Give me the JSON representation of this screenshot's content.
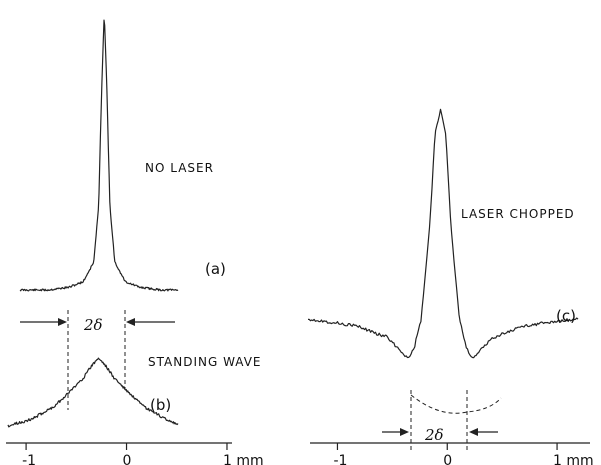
{
  "chart_data": [
    {
      "type": "line",
      "panel_label": "(a)",
      "annotation": "NO LASER",
      "xlabel": "mm",
      "xlim": [
        -1.2,
        1.05
      ],
      "xticks": [
        -1,
        0,
        1
      ],
      "xtick_labels": [
        "-1",
        "0",
        "1 mm"
      ],
      "series": [
        {
          "x": [
            -1.2,
            -0.8,
            -0.5,
            -0.3,
            -0.15,
            -0.08,
            -0.04,
            0.0,
            0.04,
            0.08,
            0.15,
            0.3,
            0.5,
            0.8,
            1.05
          ],
          "y": [
            0.0,
            0.0,
            0.01,
            0.03,
            0.1,
            0.3,
            0.7,
            1.0,
            0.7,
            0.3,
            0.1,
            0.03,
            0.01,
            0.0,
            0.0
          ]
        }
      ]
    },
    {
      "type": "line",
      "panel_label": "(b)",
      "annotation": "STANDING WAVE",
      "marker_label": "2δ",
      "xlabel": "mm",
      "xlim": [
        -1.2,
        1.05
      ],
      "xticks": [
        -1,
        0,
        1
      ],
      "xtick_labels": [
        "-1",
        "0",
        "1 mm"
      ],
      "series": [
        {
          "x": [
            -1.2,
            -0.9,
            -0.6,
            -0.4,
            -0.2,
            -0.1,
            0.0,
            0.1,
            0.2,
            0.4,
            0.6,
            0.9,
            1.05
          ],
          "y": [
            0.03,
            0.12,
            0.3,
            0.5,
            0.72,
            0.88,
            1.0,
            0.88,
            0.72,
            0.5,
            0.3,
            0.12,
            0.05
          ]
        }
      ]
    },
    {
      "type": "line",
      "panel_label": "(c)",
      "annotation": "LASER CHOPPED",
      "marker_label": "2δ",
      "xlabel": "mm",
      "xlim": [
        -1.25,
        1.3
      ],
      "xticks": [
        -1,
        0,
        1
      ],
      "xtick_labels": [
        "-1",
        "0",
        "1 mm"
      ],
      "series": [
        {
          "x": [
            -1.25,
            -0.8,
            -0.5,
            -0.35,
            -0.3,
            -0.25,
            -0.18,
            -0.1,
            -0.05,
            0.0,
            0.05,
            0.1,
            0.18,
            0.25,
            0.3,
            0.35,
            0.5,
            0.8,
            1.3
          ],
          "y": [
            0.1,
            0.07,
            0.02,
            -0.05,
            -0.07,
            -0.03,
            0.1,
            0.5,
            0.9,
            1.0,
            0.9,
            0.5,
            0.1,
            -0.03,
            -0.07,
            -0.05,
            0.02,
            0.07,
            0.1
          ]
        }
      ]
    }
  ]
}
